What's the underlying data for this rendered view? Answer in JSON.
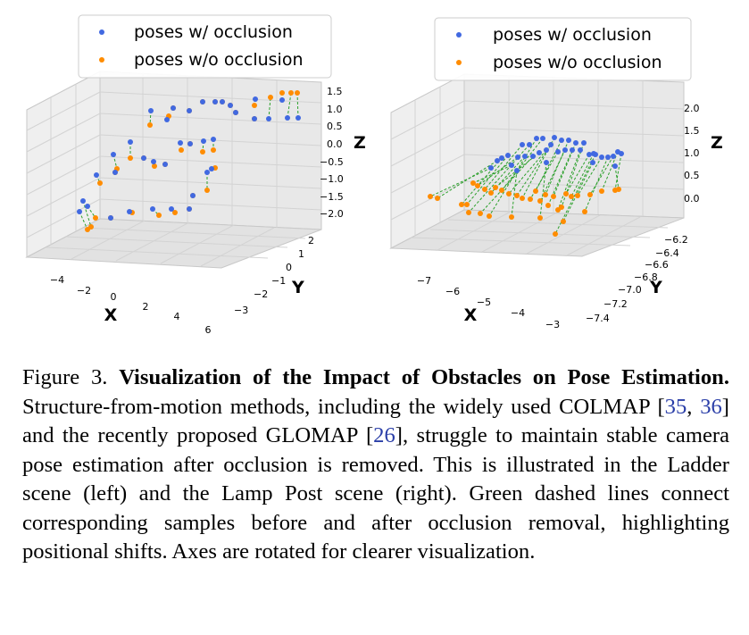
{
  "colors": {
    "occluded": "#4169e1",
    "clean": "#ff8c00",
    "link": "#2ca02c"
  },
  "legend": {
    "series_occluded": "poses w/ occlusion",
    "series_clean": "poses w/o occlusion"
  },
  "chart_data": [
    {
      "type": "scatter3d",
      "scene": "Ladder",
      "xlabel": "X",
      "ylabel": "Y",
      "zlabel": "Z",
      "x_ticks": [
        "−4",
        "−2",
        "0",
        "2",
        "4",
        "6"
      ],
      "y_ticks": [
        "2",
        "1",
        "0",
        "−1",
        "−2",
        "−3"
      ],
      "z_ticks": [
        "1.5",
        "1.0",
        "0.5",
        "0.0",
        "−0.5",
        "−1.0",
        "−1.5",
        "−2.0"
      ],
      "series": [
        {
          "name": "poses w/ occlusion",
          "color": "#4169e1"
        },
        {
          "name": "poses w/o occlusion",
          "color": "#ff8c00"
        }
      ],
      "pairs": [
        {
          "occluded": [
            89,
            237
          ],
          "clean": [
            98,
            257
          ]
        },
        {
          "occluded": [
            93,
            225
          ],
          "clean": [
            102,
            254
          ]
        },
        {
          "occluded": [
            98,
            231
          ],
          "clean": [
            107,
            244
          ]
        },
        {
          "occluded": [
            108,
            196
          ],
          "clean": [
            112,
            205
          ]
        },
        {
          "occluded": [
            124,
            244
          ],
          "clean": [
            124,
            244
          ]
        },
        {
          "occluded": [
            127,
            173
          ],
          "clean": [
            131,
            189
          ]
        },
        {
          "occluded": [
            145,
            237
          ],
          "clean": [
            148,
            238
          ]
        },
        {
          "occluded": [
            129,
            193
          ],
          "clean": [
            129,
            193
          ]
        },
        {
          "occluded": [
            146,
            159
          ],
          "clean": [
            146,
            177
          ]
        },
        {
          "occluded": [
            161,
            177
          ],
          "clean": [
            161,
            177
          ]
        },
        {
          "occluded": [
            172,
            181
          ],
          "clean": [
            173,
            186
          ]
        },
        {
          "occluded": [
            185,
            184
          ],
          "clean": [
            185,
            184
          ]
        },
        {
          "occluded": [
            171,
            234
          ],
          "clean": [
            178,
            241
          ]
        },
        {
          "occluded": [
            192,
            234
          ],
          "clean": [
            196,
            238
          ]
        },
        {
          "occluded": [
            202,
            160
          ],
          "clean": [
            203,
            168
          ]
        },
        {
          "occluded": [
            213,
            161
          ],
          "clean": [
            213,
            161
          ]
        },
        {
          "occluded": [
            212,
            234
          ],
          "clean": [
            212,
            234
          ]
        },
        {
          "occluded": [
            216,
            219
          ],
          "clean": [
            216,
            219
          ]
        },
        {
          "occluded": [
            228,
            158
          ],
          "clean": [
            227,
            170
          ]
        },
        {
          "occluded": [
            232,
            193
          ],
          "clean": [
            232,
            213
          ]
        },
        {
          "occluded": [
            239,
            156
          ],
          "clean": [
            239,
            168
          ]
        },
        {
          "occluded": [
            237,
            189
          ],
          "clean": [
            241,
            188
          ]
        },
        {
          "occluded": [
            169,
            124
          ],
          "clean": [
            168,
            140
          ]
        },
        {
          "occluded": [
            187,
            134
          ],
          "clean": [
            189,
            130
          ]
        },
        {
          "occluded": [
            194,
            121
          ],
          "clean": [
            194,
            121
          ]
        },
        {
          "occluded": [
            212,
            124
          ],
          "clean": [
            212,
            124
          ]
        },
        {
          "occluded": [
            227,
            114
          ],
          "clean": [
            227,
            114
          ]
        },
        {
          "occluded": [
            241,
            114
          ],
          "clean": [
            241,
            114
          ]
        },
        {
          "occluded": [
            249,
            114
          ],
          "clean": [
            249,
            114
          ]
        },
        {
          "occluded": [
            258,
            118
          ],
          "clean": [
            258,
            118
          ]
        },
        {
          "occluded": [
            264,
            126
          ],
          "clean": [
            264,
            126
          ]
        },
        {
          "occluded": [
            286,
            111
          ],
          "clean": [
            285,
            118
          ]
        },
        {
          "occluded": [
            285,
            133
          ],
          "clean": [
            285,
            133
          ]
        },
        {
          "occluded": [
            301,
            133
          ],
          "clean": [
            303,
            109
          ]
        },
        {
          "occluded": [
            316,
            112
          ],
          "clean": [
            316,
            104
          ]
        },
        {
          "occluded": [
            322,
            132
          ],
          "clean": [
            326,
            104
          ]
        },
        {
          "occluded": [
            334,
            132
          ],
          "clean": [
            333,
            104
          ]
        }
      ]
    },
    {
      "type": "scatter3d",
      "scene": "Lamp Post",
      "xlabel": "X",
      "ylabel": "Y",
      "zlabel": "Z",
      "x_ticks": [
        "−7",
        "−6",
        "−5",
        "−4",
        "−3"
      ],
      "y_ticks": [
        "−6.2",
        "−6.4",
        "−6.6",
        "−6.8",
        "−7.0",
        "−7.2",
        "−7.4"
      ],
      "z_ticks": [
        "2.0",
        "1.5",
        "1.0",
        "0.5",
        "0.0"
      ],
      "series": [
        {
          "name": "poses w/ occlusion",
          "color": "#4169e1"
        },
        {
          "name": "poses w/o occlusion",
          "color": "#ff8c00"
        }
      ],
      "pairs": [
        {
          "occluded": [
            550,
            188
          ],
          "clean": [
            482,
            220
          ]
        },
        {
          "occluded": [
            557,
            180
          ],
          "clean": [
            490,
            222
          ]
        },
        {
          "occluded": [
            562,
            177
          ],
          "clean": [
            517,
            229
          ]
        },
        {
          "occluded": [
            569,
            174
          ],
          "clean": [
            523,
            229
          ]
        },
        {
          "occluded": [
            573,
            185
          ],
          "clean": [
            530,
            205
          ]
        },
        {
          "occluded": [
            580,
            176
          ],
          "clean": [
            535,
            208
          ]
        },
        {
          "occluded": [
            585,
            162
          ],
          "clean": [
            543,
            212
          ]
        },
        {
          "occluded": [
            588,
            175
          ],
          "clean": [
            550,
            216
          ]
        },
        {
          "occluded": [
            593,
            162
          ],
          "clean": [
            525,
            238
          ]
        },
        {
          "occluded": [
            597,
            175
          ],
          "clean": [
            538,
            239
          ]
        },
        {
          "occluded": [
            601,
            155
          ],
          "clean": [
            548,
            242
          ]
        },
        {
          "occluded": [
            604,
            171
          ],
          "clean": [
            555,
            210
          ]
        },
        {
          "occluded": [
            608,
            155
          ],
          "clean": [
            562,
            213
          ]
        },
        {
          "occluded": [
            612,
            168
          ],
          "clean": [
            570,
            217
          ]
        },
        {
          "occluded": [
            617,
            162
          ],
          "clean": [
            579,
            219
          ]
        },
        {
          "occluded": [
            621,
            154
          ],
          "clean": [
            585,
            222
          ]
        },
        {
          "occluded": [
            625,
            170
          ],
          "clean": [
            594,
            223
          ]
        },
        {
          "occluded": [
            629,
            157
          ],
          "clean": [
            600,
            214
          ]
        },
        {
          "occluded": [
            633,
            168
          ],
          "clean": [
            605,
            225
          ]
        },
        {
          "occluded": [
            637,
            157
          ],
          "clean": [
            611,
            218
          ]
        },
        {
          "occluded": [
            641,
            168
          ],
          "clean": [
            614,
            230
          ]
        },
        {
          "occluded": [
            645,
            160
          ],
          "clean": [
            620,
            220
          ]
        },
        {
          "occluded": [
            650,
            168
          ],
          "clean": [
            625,
            235
          ]
        },
        {
          "occluded": [
            654,
            160
          ],
          "clean": [
            629,
            232
          ]
        },
        {
          "occluded": [
            660,
            173
          ],
          "clean": [
            634,
            217
          ]
        },
        {
          "occluded": [
            665,
            172
          ],
          "clean": [
            640,
            220
          ]
        },
        {
          "occluded": [
            674,
            176
          ],
          "clean": [
            647,
            219
          ]
        },
        {
          "occluded": [
            681,
            176
          ],
          "clean": [
            655,
            237
          ]
        },
        {
          "occluded": [
            687,
            175
          ],
          "clean": [
            661,
            218
          ]
        },
        {
          "occluded": [
            692,
            170
          ],
          "clean": [
            674,
            214
          ]
        },
        {
          "occluded": [
            696,
            172
          ],
          "clean": [
            689,
            213
          ]
        },
        {
          "occluded": [
            689,
            186
          ],
          "clean": [
            693,
            212
          ]
        },
        {
          "occluded": [
            667,
            173
          ],
          "clean": [
            622,
            262
          ]
        },
        {
          "occluded": [
            664,
            182
          ],
          "clean": [
            631,
            248
          ]
        },
        {
          "occluded": [
            579,
            191
          ],
          "clean": [
            573,
            243
          ]
        },
        {
          "occluded": [
            612,
            182
          ],
          "clean": [
            605,
            244
          ]
        }
      ]
    }
  ],
  "caption": {
    "figure_label": "Figure 3.",
    "title": "Visualization of the Impact of Obstacles on Pose Estimation.",
    "text_1": "Structure-from-motion methods, including the widely used COLMAP [",
    "cite_1": "35",
    "sep_1": ", ",
    "cite_2": "36",
    "text_2": "] and the recently proposed GLOMAP [",
    "cite_3": "26",
    "text_3": "], struggle to maintain stable camera pose estimation after occlusion is removed. This is illustrated in the Ladder scene (left) and the Lamp Post scene (right). Green dashed lines connect corresponding samples before and after occlusion removal, highlighting positional shifts. Axes are rotated for clearer visualization."
  }
}
